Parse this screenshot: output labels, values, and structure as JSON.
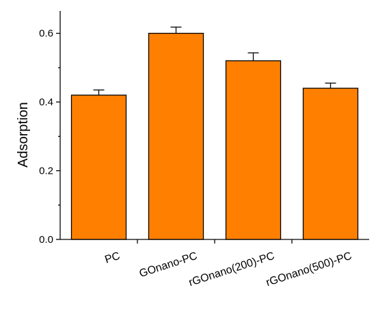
{
  "chart_data": {
    "type": "bar",
    "ylabel": "Adsorption",
    "xlabel": "",
    "categories": [
      "PC",
      "GOnano-PC",
      "rGOnano(200)-PC",
      "rGOnano(500)-PC"
    ],
    "values": [
      0.42,
      0.6,
      0.52,
      0.44
    ],
    "errors": [
      0.015,
      0.018,
      0.023,
      0.015
    ],
    "ylim": [
      0.0,
      0.665
    ],
    "yticks": [
      0.0,
      0.2,
      0.4,
      0.6
    ],
    "ytick_labels": [
      "0.0",
      "0.2",
      "0.4",
      "0.6"
    ],
    "grid": false,
    "bar_color": "#ff8000"
  }
}
